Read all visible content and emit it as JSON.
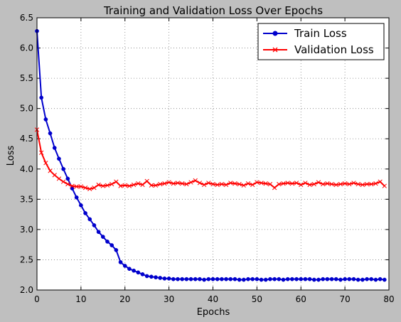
{
  "chart_data": {
    "type": "line",
    "title": "Training and Validation Loss Over Epochs",
    "xlabel": "Epochs",
    "ylabel": "Loss",
    "xlim": [
      0,
      80
    ],
    "ylim": [
      2.0,
      6.5
    ],
    "xticks": [
      "0",
      "10",
      "20",
      "30",
      "40",
      "50",
      "60",
      "70",
      "80"
    ],
    "yticks": [
      "2.0",
      "2.5",
      "3.0",
      "3.5",
      "4.0",
      "4.5",
      "5.0",
      "5.5",
      "6.0",
      "6.5"
    ],
    "grid": true,
    "legend_position": "top-right",
    "series": [
      {
        "name": "Train Loss",
        "color": "#0000cc",
        "marker": "circle",
        "values": [
          6.28,
          5.18,
          4.82,
          4.59,
          4.35,
          4.17,
          4.0,
          3.84,
          3.68,
          3.53,
          3.4,
          3.27,
          3.17,
          3.07,
          2.96,
          2.88,
          2.8,
          2.74,
          2.66,
          2.46,
          2.4,
          2.35,
          2.32,
          2.29,
          2.26,
          2.23,
          2.22,
          2.21,
          2.2,
          2.19,
          2.19,
          2.18,
          2.18,
          2.18,
          2.18,
          2.18,
          2.18,
          2.18,
          2.17,
          2.18,
          2.18,
          2.18,
          2.18,
          2.18,
          2.18,
          2.18,
          2.17,
          2.17,
          2.18,
          2.18,
          2.18,
          2.17,
          2.17,
          2.18,
          2.18,
          2.18,
          2.17,
          2.18,
          2.18,
          2.18,
          2.18,
          2.18,
          2.18,
          2.17,
          2.17,
          2.18,
          2.18,
          2.18,
          2.18,
          2.17,
          2.18,
          2.18,
          2.18,
          2.17,
          2.17,
          2.18,
          2.18,
          2.17,
          2.18,
          2.17
        ]
      },
      {
        "name": "Validation Loss",
        "color": "#ff0000",
        "marker": "x",
        "values": [
          4.65,
          4.27,
          4.1,
          3.97,
          3.9,
          3.84,
          3.79,
          3.75,
          3.72,
          3.71,
          3.71,
          3.69,
          3.67,
          3.69,
          3.74,
          3.72,
          3.73,
          3.75,
          3.79,
          3.72,
          3.73,
          3.72,
          3.74,
          3.76,
          3.74,
          3.8,
          3.73,
          3.73,
          3.75,
          3.76,
          3.78,
          3.76,
          3.77,
          3.76,
          3.75,
          3.78,
          3.81,
          3.77,
          3.74,
          3.77,
          3.75,
          3.74,
          3.75,
          3.74,
          3.77,
          3.76,
          3.75,
          3.73,
          3.76,
          3.74,
          3.78,
          3.77,
          3.76,
          3.75,
          3.69,
          3.75,
          3.76,
          3.77,
          3.76,
          3.77,
          3.74,
          3.77,
          3.74,
          3.75,
          3.78,
          3.75,
          3.76,
          3.75,
          3.74,
          3.75,
          3.76,
          3.75,
          3.77,
          3.75,
          3.74,
          3.75,
          3.75,
          3.76,
          3.79,
          3.72
        ]
      }
    ]
  }
}
